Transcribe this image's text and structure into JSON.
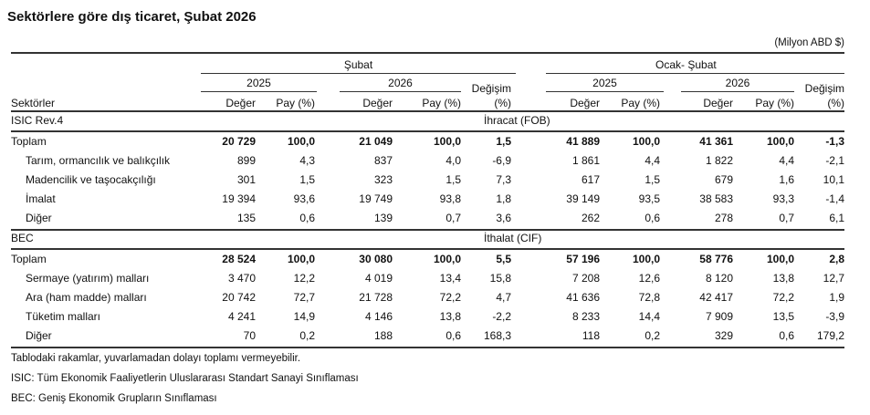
{
  "title": "Sektörlere göre dış ticaret, Şubat 2026",
  "unit": "(Milyon ABD $)",
  "header": {
    "period1": "Şubat",
    "period2": "Ocak- Şubat",
    "year1": "2025",
    "year2": "2026",
    "change": "Değişim",
    "change_unit": "(%)",
    "value": "Değer",
    "share": "Pay (%)",
    "sectors": "Sektörler"
  },
  "sections": [
    {
      "classification": "ISIC  Rev.4",
      "flow": "İhracat (FOB)",
      "rows": [
        {
          "label": "Toplam",
          "bold": true,
          "values": [
            "20 729",
            "100,0",
            "21 049",
            "100,0",
            "1,5",
            "41 889",
            "100,0",
            "41 361",
            "100,0",
            "-1,3"
          ]
        },
        {
          "label": "Tarım, ormancılık ve balıkçılık",
          "values": [
            "899",
            "4,3",
            "837",
            "4,0",
            "-6,9",
            "1 861",
            "4,4",
            "1 822",
            "4,4",
            "-2,1"
          ]
        },
        {
          "label": "Madencilik ve taşocakçılığı",
          "values": [
            "301",
            "1,5",
            "323",
            "1,5",
            "7,3",
            "617",
            "1,5",
            "679",
            "1,6",
            "10,1"
          ]
        },
        {
          "label": "İmalat",
          "values": [
            "19 394",
            "93,6",
            "19 749",
            "93,8",
            "1,8",
            "39 149",
            "93,5",
            "38 583",
            "93,3",
            "-1,4"
          ]
        },
        {
          "label": "Diğer",
          "values": [
            "135",
            "0,6",
            "139",
            "0,7",
            "3,6",
            "262",
            "0,6",
            "278",
            "0,7",
            "6,1"
          ]
        }
      ]
    },
    {
      "classification": "BEC",
      "flow": "İthalat (CIF)",
      "rows": [
        {
          "label": "Toplam",
          "bold": true,
          "values": [
            "28 524",
            "100,0",
            "30 080",
            "100,0",
            "5,5",
            "57 196",
            "100,0",
            "58 776",
            "100,0",
            "2,8"
          ]
        },
        {
          "label": "Sermaye (yatırım) malları",
          "values": [
            "3 470",
            "12,2",
            "4 019",
            "13,4",
            "15,8",
            "7 208",
            "12,6",
            "8 120",
            "13,8",
            "12,7"
          ]
        },
        {
          "label": "Ara (ham madde) malları",
          "values": [
            "20 742",
            "72,7",
            "21 728",
            "72,2",
            "4,7",
            "41 636",
            "72,8",
            "42 417",
            "72,2",
            "1,9"
          ]
        },
        {
          "label": "Tüketim malları",
          "values": [
            "4 241",
            "14,9",
            "4 146",
            "13,8",
            "-2,2",
            "8 233",
            "14,4",
            "7 909",
            "13,5",
            "-3,9"
          ]
        },
        {
          "label": "Diğer",
          "values": [
            "70",
            "0,2",
            "188",
            "0,6",
            "168,3",
            "118",
            "0,2",
            "329",
            "0,6",
            "179,2"
          ]
        }
      ]
    }
  ],
  "footnotes": [
    "Tablodaki rakamlar, yuvarlamadan dolayı toplamı vermeyebilir.",
    "ISIC: Tüm Ekonomik Faaliyetlerin Uluslararası Standart Sanayi Sınıflaması",
    "BEC: Geniş Ekonomik Grupların Sınıflaması"
  ]
}
